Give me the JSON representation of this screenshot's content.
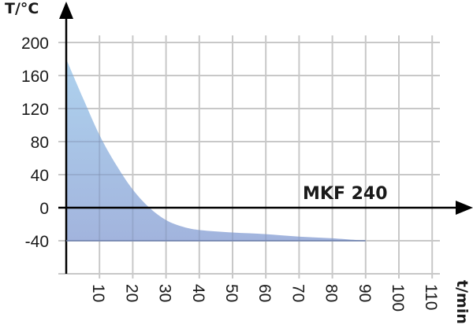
{
  "chart_data": {
    "type": "area",
    "title": "",
    "xlabel": "t/min",
    "ylabel": "T/°C",
    "x_ticks": [
      10,
      20,
      30,
      40,
      50,
      60,
      70,
      80,
      90,
      100,
      110
    ],
    "y_ticks": [
      200,
      160,
      120,
      80,
      40,
      0,
      -40
    ],
    "xlim": [
      0,
      110
    ],
    "ylim": [
      -80,
      200
    ],
    "grid": true,
    "annotations": [
      {
        "text": "MKF 240",
        "x": 72,
        "y": 18
      }
    ],
    "series": [
      {
        "name": "MKF 240",
        "x": [
          0,
          5,
          10,
          15,
          20,
          25,
          30,
          35,
          40,
          50,
          60,
          70,
          80,
          90
        ],
        "values": [
          180,
          133,
          88,
          52,
          22,
          0,
          -15,
          -23,
          -27,
          -30,
          -32,
          -35,
          -37,
          -40
        ]
      }
    ],
    "colors": {
      "fill_top": "#a9cdec",
      "fill_bottom": "#a3b6de",
      "grid": "#c8c8c8",
      "axis": "#000000"
    }
  },
  "labels": {
    "ylabel": "T/°C",
    "xlabel": "t/min",
    "series_label": "MKF 240",
    "y_ticks": [
      "200",
      "160",
      "120",
      "80",
      "40",
      "0",
      "-40"
    ],
    "x_ticks": [
      "10",
      "20",
      "30",
      "40",
      "50",
      "60",
      "70",
      "80",
      "90",
      "100",
      "110"
    ]
  }
}
